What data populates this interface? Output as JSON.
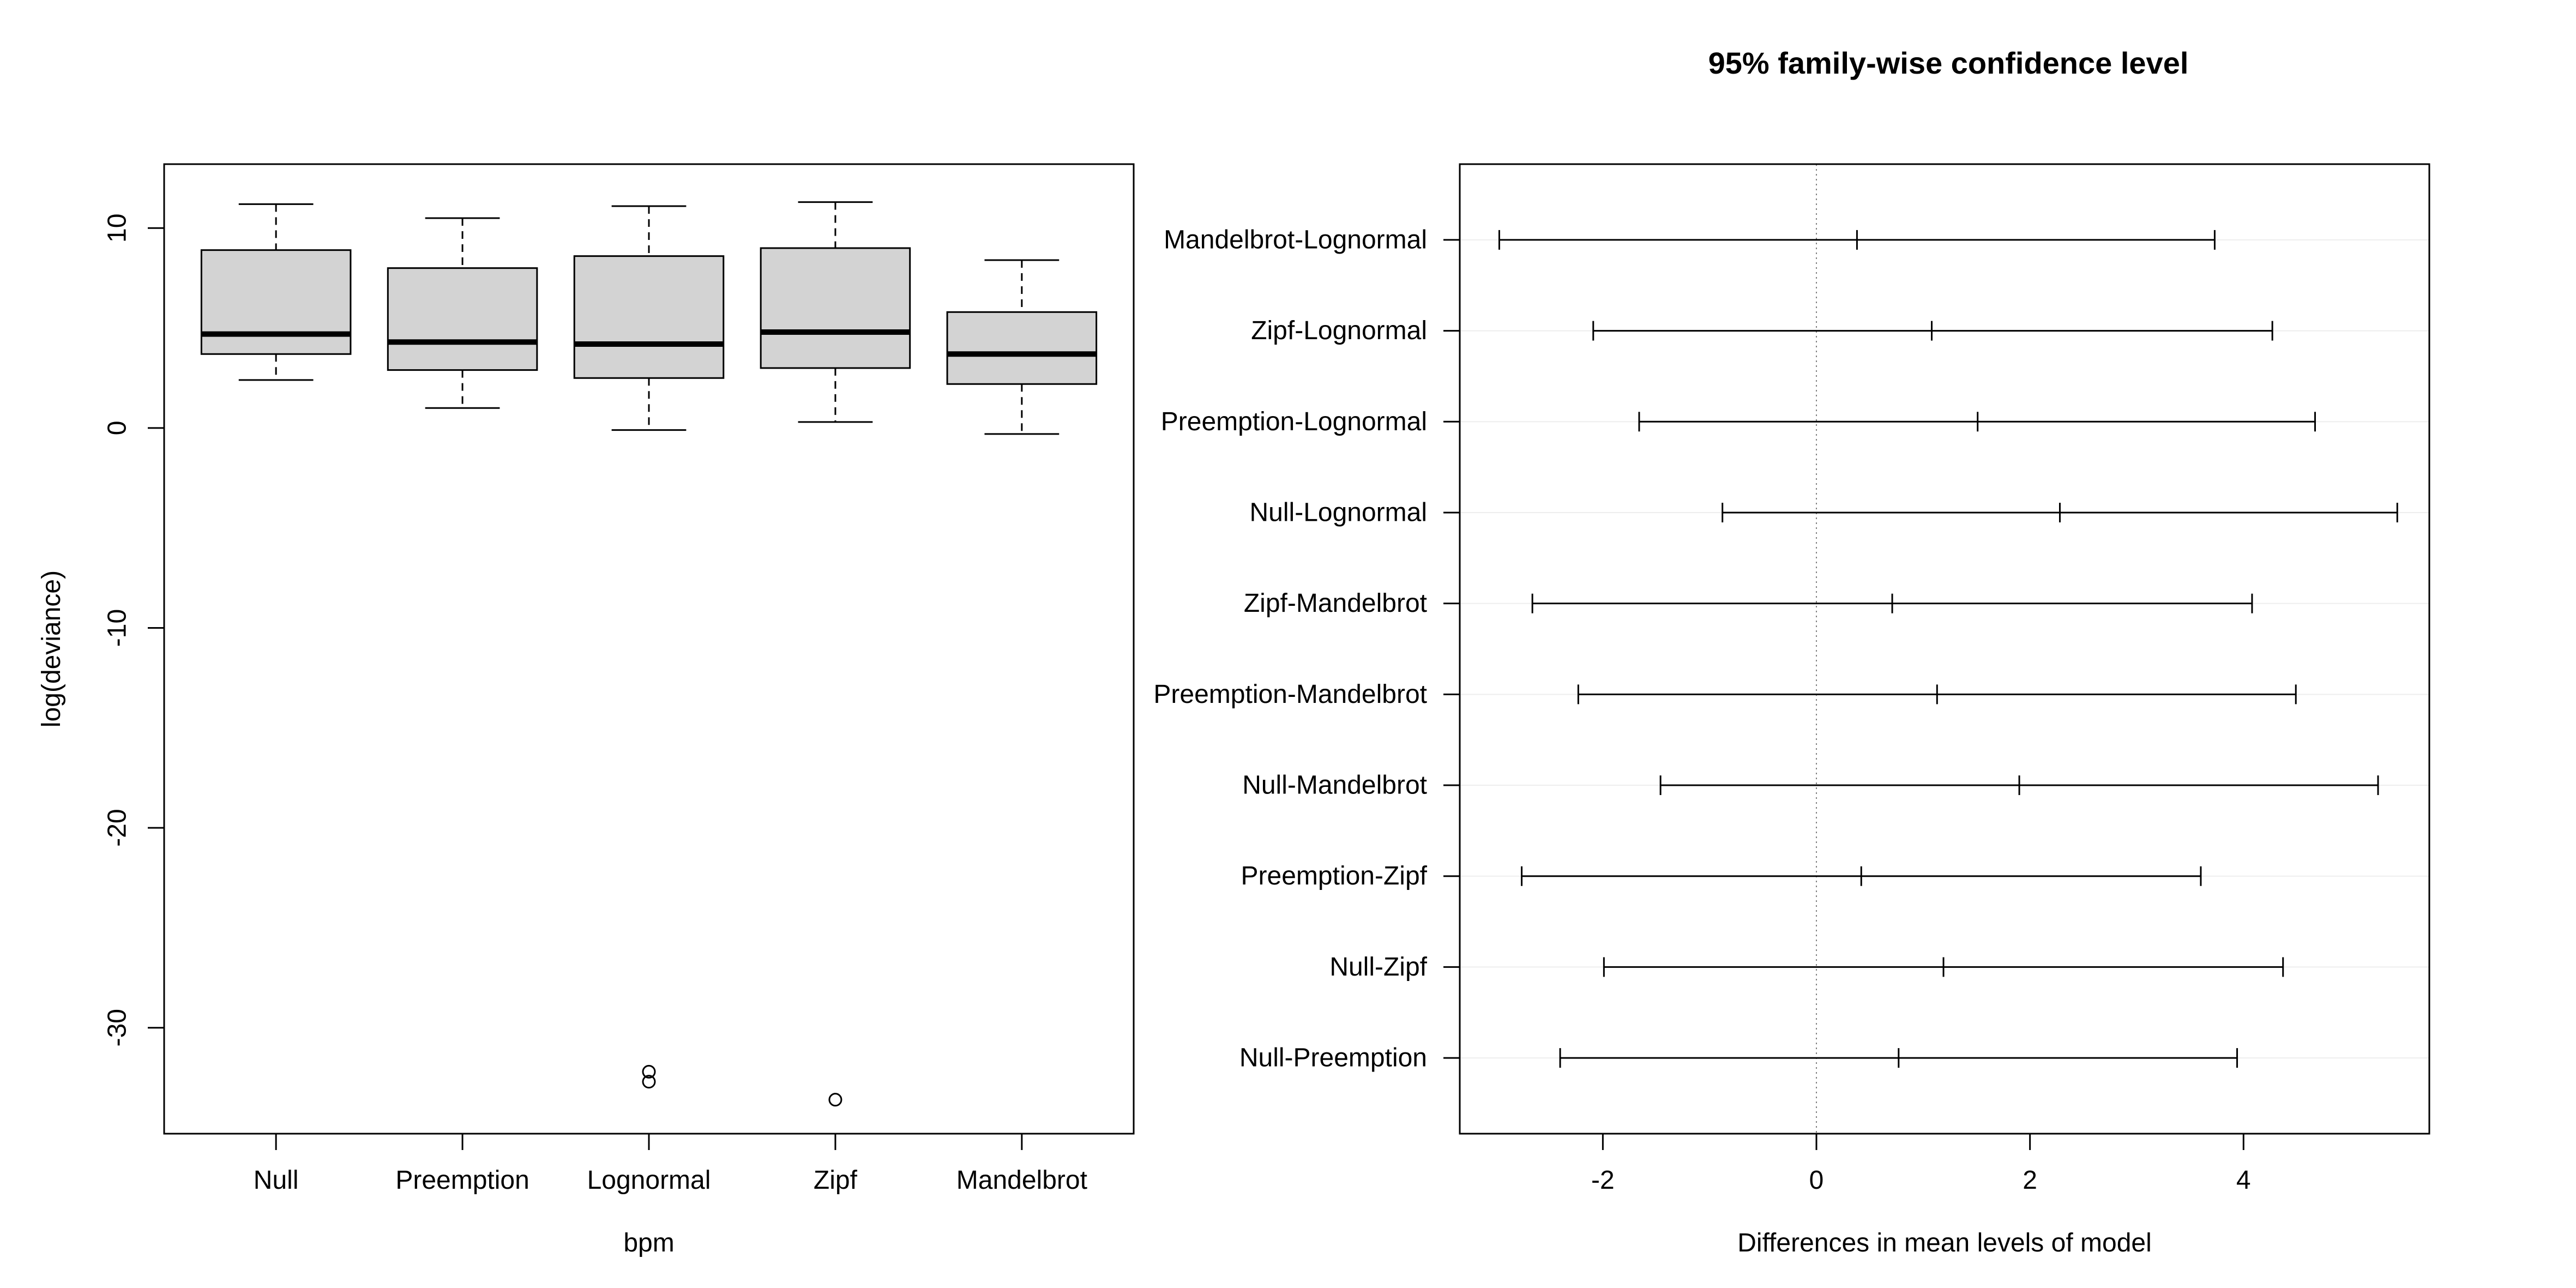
{
  "chart_data": [
    {
      "type": "boxplot",
      "xlabel": "bpm",
      "ylabel": "log(deviance)",
      "ylim": [
        -35.3,
        13.2
      ],
      "yticks": [
        10,
        0,
        -10,
        -20,
        -30
      ],
      "categories": [
        "Null",
        "Preemption",
        "Lognormal",
        "Zipf",
        "Mandelbrot"
      ],
      "boxes": [
        {
          "name": "Null",
          "whisker_low": 2.4,
          "q1": 3.7,
          "median": 4.7,
          "q3": 8.9,
          "whisker_high": 11.2,
          "outliers": []
        },
        {
          "name": "Preemption",
          "whisker_low": 1.0,
          "q1": 2.9,
          "median": 4.3,
          "q3": 8.0,
          "whisker_high": 10.5,
          "outliers": []
        },
        {
          "name": "Lognormal",
          "whisker_low": -0.1,
          "q1": 2.5,
          "median": 4.2,
          "q3": 8.6,
          "whisker_high": 11.1,
          "outliers": [
            -32.2,
            -32.7
          ]
        },
        {
          "name": "Zipf",
          "whisker_low": 0.3,
          "q1": 3.0,
          "median": 4.8,
          "q3": 9.0,
          "whisker_high": 11.3,
          "outliers": [
            -33.6
          ]
        },
        {
          "name": "Mandelbrot",
          "whisker_low": -0.3,
          "q1": 2.2,
          "median": 3.7,
          "q3": 5.8,
          "whisker_high": 8.4,
          "outliers": []
        }
      ],
      "colors": {
        "box_fill": "#d3d3d3",
        "line": "#000000"
      }
    },
    {
      "type": "interval",
      "title": "95% family-wise confidence level",
      "xlabel": "Differences in mean levels of model",
      "xlim": [
        -3.34,
        5.74
      ],
      "xticks": [
        -2,
        0,
        2,
        4
      ],
      "reference_line": 0,
      "comparisons": [
        {
          "label": "Mandelbrot-Lognormal",
          "lower": -2.97,
          "estimate": 0.38,
          "upper": 3.73
        },
        {
          "label": "Zipf-Lognormal",
          "lower": -2.09,
          "estimate": 1.08,
          "upper": 4.27
        },
        {
          "label": "Preemption-Lognormal",
          "lower": -1.66,
          "estimate": 1.51,
          "upper": 4.67
        },
        {
          "label": "Null-Lognormal",
          "lower": -0.88,
          "estimate": 2.28,
          "upper": 5.44
        },
        {
          "label": "Zipf-Mandelbrot",
          "lower": -2.66,
          "estimate": 0.71,
          "upper": 4.08
        },
        {
          "label": "Preemption-Mandelbrot",
          "lower": -2.23,
          "estimate": 1.13,
          "upper": 4.49
        },
        {
          "label": "Null-Mandelbrot",
          "lower": -1.46,
          "estimate": 1.9,
          "upper": 5.26
        },
        {
          "label": "Preemption-Zipf",
          "lower": -2.76,
          "estimate": 0.42,
          "upper": 3.6
        },
        {
          "label": "Null-Zipf",
          "lower": -1.99,
          "estimate": 1.19,
          "upper": 4.37
        },
        {
          "label": "Null-Preemption",
          "lower": -2.4,
          "estimate": 0.77,
          "upper": 3.94
        }
      ],
      "colors": {
        "line": "#000000",
        "grid": "#eeeeee",
        "reference": "#808080"
      }
    }
  ]
}
